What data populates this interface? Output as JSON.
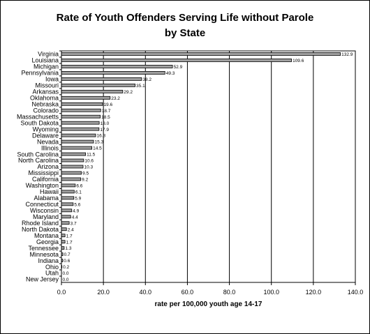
{
  "chart_data": {
    "type": "bar",
    "orientation": "horizontal",
    "title_lines": [
      "Rate of Youth Offenders Serving Life without Parole",
      "by State"
    ],
    "xlabel": "rate per 100,000 youth age 14-17",
    "ylabel": "",
    "xlim": [
      0,
      140
    ],
    "xticks": [
      "0.0",
      "20.0",
      "40.0",
      "60.0",
      "80.0",
      "100.0",
      "120.0",
      "140.0"
    ],
    "grid": "vertical",
    "legend": "none",
    "categories": [
      "Virginia",
      "Louisiana",
      "Michigan",
      "Pennsylvania",
      "Iowa",
      "Missouri",
      "Arkansas",
      "Oklahoma",
      "Nebraska",
      "Colorado",
      "Massachusetts",
      "South Dakota",
      "Wyoming",
      "Delaware",
      "Nevada",
      "Illinois",
      "South Carolina",
      "North Carolina",
      "Arizona",
      "Mississippi",
      "California",
      "Washington",
      "Hawaii",
      "Alabama",
      "Connecticut",
      "Wisconsin",
      "Maryland",
      "Rhode Island",
      "North Dakota",
      "Montana",
      "Georgia",
      "Tennessee",
      "Minnesota",
      "Indiana",
      "Ohio",
      "Utah",
      "New Jersey"
    ],
    "values": [
      132.9,
      109.6,
      52.9,
      49.3,
      38.2,
      35.1,
      29.2,
      23.2,
      19.6,
      18.7,
      18.5,
      18.0,
      17.9,
      16.3,
      15.3,
      14.5,
      11.5,
      10.6,
      10.3,
      9.5,
      9.2,
      6.6,
      6.1,
      5.9,
      5.6,
      4.9,
      4.4,
      3.7,
      2.4,
      1.7,
      1.7,
      1.3,
      0.7,
      0.6,
      0.2,
      0.0,
      0.0
    ],
    "value_labels": [
      "132.9",
      "109.6",
      "52.9",
      "49.3",
      "38.2",
      "35.1",
      "29.2",
      "23.2",
      "19.6",
      "18.7",
      "18.5",
      "18.0",
      "17.9",
      "16.3",
      "15.3",
      "14.5",
      "11.5",
      "10.6",
      "10.3",
      "9.5",
      "9.2",
      "6.6",
      "6.1",
      "5.9",
      "5.6",
      "4.9",
      "4.4",
      "3.7",
      "2.4",
      "1.7",
      "1.7",
      "1.3",
      "0.7",
      "0.6",
      "0.2",
      "0.0",
      "0.0"
    ],
    "colors": {
      "bar_fill": "#a0a0a0",
      "bar_stroke": "#000000",
      "grid": "#000000"
    }
  }
}
